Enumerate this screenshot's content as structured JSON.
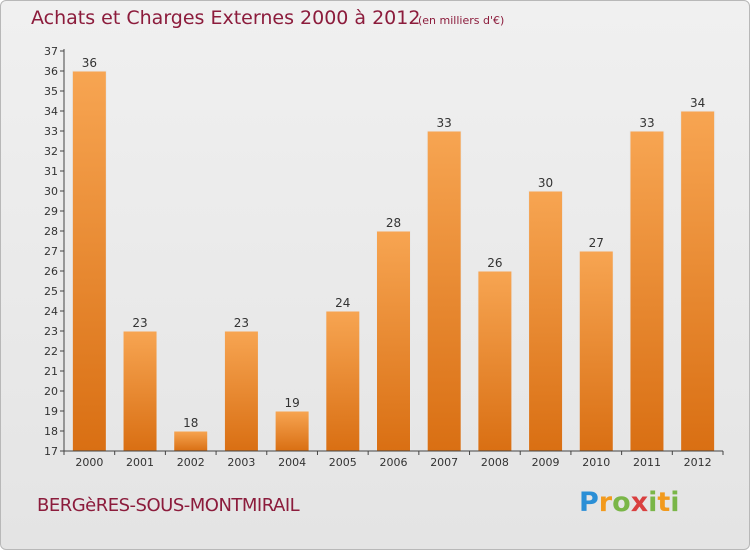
{
  "header": {
    "title": "Achats et Charges Externes 2000 à 2012",
    "subtitle": "(en milliers d'€)"
  },
  "footer": {
    "commune": "BERGèRES-SOUS-MONTMIRAIL",
    "logo_letters": [
      "P",
      "r",
      "o",
      "x",
      "i",
      "t",
      "i"
    ]
  },
  "colors": {
    "bar_light": "#f7a552",
    "bar_dark": "#d96f13",
    "title": "#8c1c3c",
    "axis": "#444444"
  },
  "chart_data": {
    "type": "bar",
    "title": "Achats et Charges Externes 2000 à 2012",
    "subtitle": "(en milliers d'€)",
    "categories": [
      "2000",
      "2001",
      "2002",
      "2003",
      "2004",
      "2005",
      "2006",
      "2007",
      "2008",
      "2009",
      "2010",
      "2011",
      "2012"
    ],
    "values": [
      36,
      23,
      18,
      23,
      19,
      24,
      28,
      33,
      26,
      30,
      27,
      33,
      34
    ],
    "xlabel": "",
    "ylabel": "",
    "ylim": [
      17,
      37
    ],
    "yticks": [
      17,
      18,
      19,
      20,
      21,
      22,
      23,
      24,
      25,
      26,
      27,
      28,
      29,
      30,
      31,
      32,
      33,
      34,
      35,
      36,
      37
    ],
    "grid": false,
    "data_labels": true
  }
}
